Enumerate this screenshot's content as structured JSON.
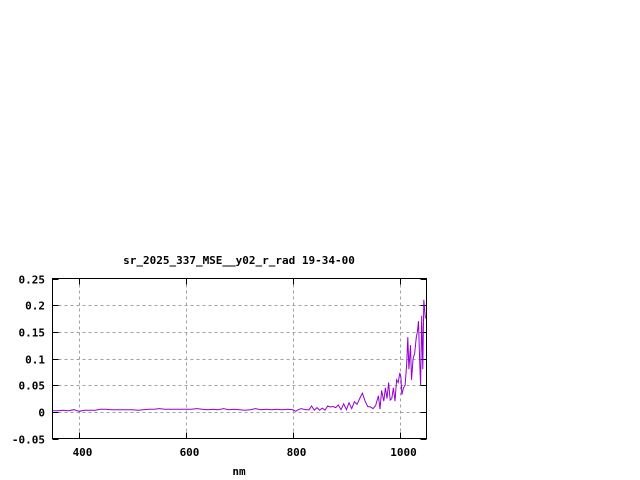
{
  "chart_data": {
    "type": "line",
    "title": "sr_2025_337_MSE__y02_r_rad 19-34-00",
    "xlabel": "nm",
    "ylabel": "",
    "xlim": [
      350,
      1050
    ],
    "ylim": [
      -0.05,
      0.25
    ],
    "xticks": [
      400,
      600,
      800,
      1000
    ],
    "xtick_labels": [
      "400",
      "600",
      "800",
      "1000"
    ],
    "yticks": [
      -0.05,
      0,
      0.05,
      0.1,
      0.15,
      0.2,
      0.25
    ],
    "ytick_labels": [
      "-0.05",
      "0",
      "0.05",
      "0.1",
      "0.15",
      "0.2",
      "0.25"
    ],
    "grid": true,
    "legend": "none",
    "line_color": "#9400d3",
    "series": [
      {
        "x": [
          350,
          360,
          370,
          380,
          390,
          400,
          410,
          420,
          430,
          440,
          450,
          460,
          470,
          480,
          490,
          500,
          510,
          520,
          530,
          540,
          550,
          560,
          570,
          580,
          590,
          600,
          610,
          620,
          630,
          640,
          650,
          660,
          670,
          680,
          690,
          700,
          710,
          720,
          730,
          740,
          750,
          760,
          770,
          780,
          790,
          800,
          805,
          810,
          815,
          820,
          825,
          830,
          835,
          840,
          845,
          850,
          855,
          860,
          865,
          870,
          875,
          880,
          885,
          890,
          895,
          900,
          905,
          910,
          915,
          920,
          925,
          930,
          935,
          940,
          945,
          950,
          955,
          960,
          963,
          966,
          970,
          973,
          976,
          979,
          982,
          985,
          988,
          991,
          994,
          997,
          1000,
          1002,
          1004,
          1007,
          1010,
          1013,
          1015,
          1017,
          1020,
          1022,
          1025,
          1028,
          1031,
          1033,
          1035,
          1037,
          1039,
          1041,
          1043,
          1045,
          1048
        ],
        "y": [
          0.002,
          0.002,
          0.003,
          0.002,
          0.004,
          0.001,
          0.003,
          0.003,
          0.003,
          0.005,
          0.005,
          0.004,
          0.004,
          0.004,
          0.004,
          0.004,
          0.003,
          0.004,
          0.005,
          0.005,
          0.006,
          0.005,
          0.005,
          0.005,
          0.005,
          0.005,
          0.005,
          0.006,
          0.005,
          0.004,
          0.005,
          0.004,
          0.006,
          0.004,
          0.005,
          0.004,
          0.003,
          0.004,
          0.006,
          0.004,
          0.005,
          0.004,
          0.005,
          0.004,
          0.005,
          0.004,
          0.001,
          0.004,
          0.006,
          0.005,
          0.004,
          0.004,
          0.011,
          0.003,
          0.008,
          0.003,
          0.007,
          0.003,
          0.011,
          0.009,
          0.01,
          0.008,
          0.013,
          0.004,
          0.015,
          0.004,
          0.017,
          0.006,
          0.019,
          0.014,
          0.025,
          0.035,
          0.02,
          0.01,
          0.009,
          0.006,
          0.012,
          0.03,
          0.005,
          0.04,
          0.02,
          0.045,
          0.025,
          0.055,
          0.022,
          0.025,
          0.045,
          0.02,
          0.06,
          0.055,
          0.073,
          0.065,
          0.032,
          0.045,
          0.05,
          0.09,
          0.14,
          0.08,
          0.125,
          0.06,
          0.1,
          0.11,
          0.14,
          0.15,
          0.17,
          0.1,
          0.05,
          0.18,
          0.08,
          0.21,
          0.175
        ]
      }
    ]
  }
}
